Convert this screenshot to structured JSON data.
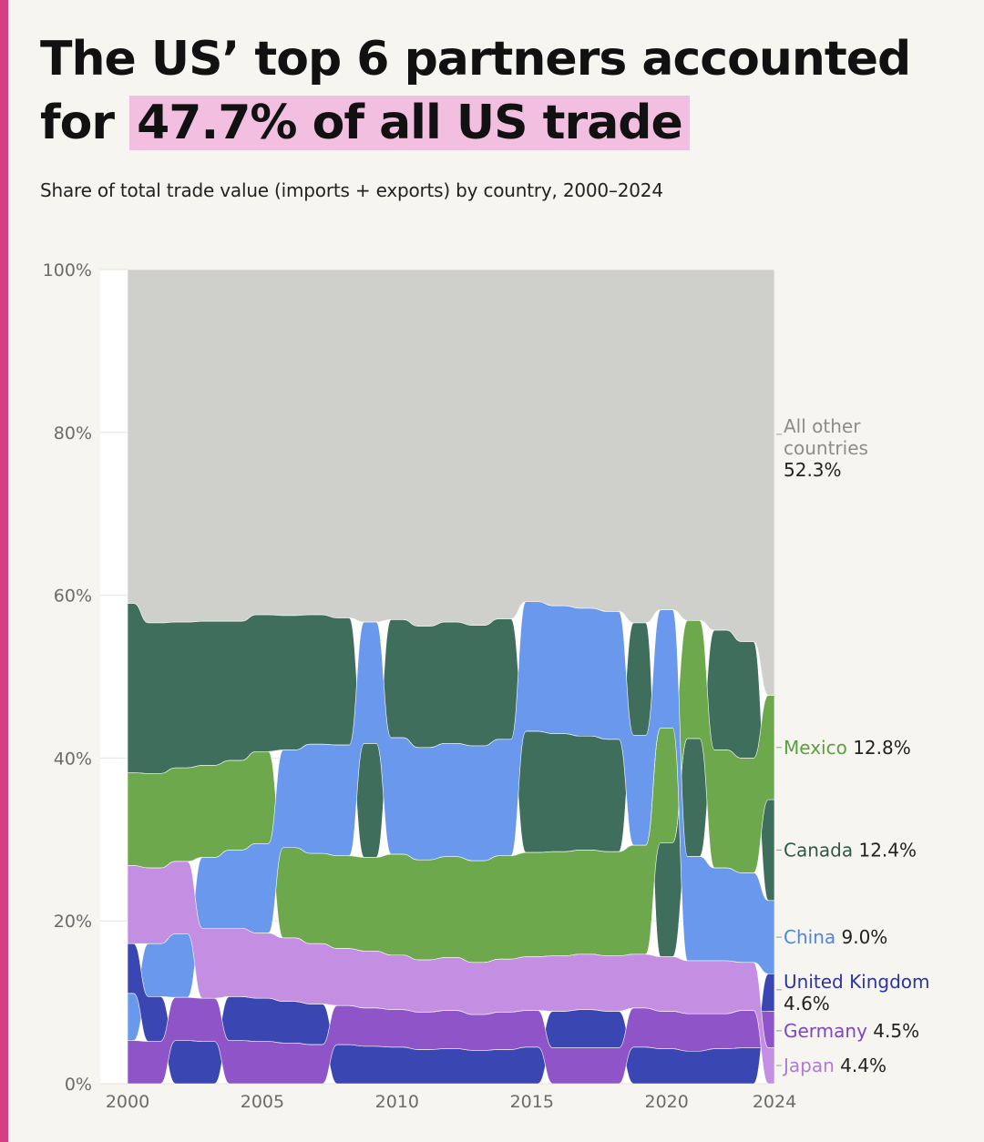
{
  "title": {
    "line1": "The US’ top 6 partners accounted",
    "line2_prefix": "for",
    "highlight": "47.7% of all US trade",
    "highlight_color": "#f2bfe0"
  },
  "subtitle": "Share of total trade value (imports + exports) by country, 2000–2024",
  "accent_color": "#d63c84",
  "chart_data": {
    "type": "area",
    "variant": "ranked stacked area (bump)",
    "x": [
      2000,
      2001,
      2002,
      2003,
      2004,
      2005,
      2006,
      2007,
      2008,
      2009,
      2010,
      2011,
      2012,
      2013,
      2014,
      2015,
      2016,
      2017,
      2018,
      2019,
      2020,
      2021,
      2022,
      2023,
      2024
    ],
    "x_ticks": [
      "2000",
      "2005",
      "2010",
      "2015",
      "2020",
      "2024"
    ],
    "y_ticks": [
      "0%",
      "20%",
      "40%",
      "60%",
      "80%",
      "100%"
    ],
    "ylim": [
      0,
      100
    ],
    "grid": true,
    "series": [
      {
        "name": "Canada",
        "color": "#3f6f5c",
        "label_color": "#2f5a48",
        "values": [
          20.8,
          18.5,
          17.9,
          17.7,
          17.1,
          16.8,
          16.5,
          15.9,
          15.6,
          14.0,
          14.5,
          14.9,
          14.9,
          14.8,
          14.8,
          14.9,
          14.5,
          14.0,
          13.8,
          13.8,
          14.0,
          14.5,
          14.7,
          14.3,
          12.4
        ],
        "end_value": "12.4%"
      },
      {
        "name": "Mexico",
        "color": "#6ea84c",
        "label_color": "#5a9f3f",
        "values": [
          11.4,
          11.6,
          11.5,
          11.3,
          11.0,
          11.3,
          11.1,
          11.1,
          11.4,
          11.5,
          12.4,
          12.3,
          12.4,
          12.5,
          12.7,
          12.8,
          12.8,
          12.8,
          12.8,
          13.4,
          14.1,
          14.5,
          14.5,
          14.1,
          12.8
        ],
        "end_value": "12.8%"
      },
      {
        "name": "China",
        "color": "#6a98ec",
        "label_color": "#4f86e5",
        "values": [
          5.8,
          6.5,
          7.8,
          8.7,
          9.6,
          11.0,
          12.0,
          13.4,
          13.6,
          14.9,
          14.3,
          13.8,
          13.9,
          14.1,
          14.3,
          15.9,
          15.7,
          15.7,
          15.7,
          13.5,
          14.5,
          12.8,
          11.4,
          11.0,
          9.0
        ],
        "end_value": "9.0%"
      },
      {
        "name": "United Kingdom",
        "color": "#3a46b2",
        "label_color": "#2d34a0",
        "values": [
          6.1,
          5.5,
          5.3,
          5.2,
          5.4,
          5.3,
          5.1,
          5.0,
          4.8,
          4.6,
          4.5,
          4.2,
          4.3,
          4.1,
          4.2,
          4.5,
          4.5,
          4.7,
          4.5,
          4.5,
          4.3,
          4.0,
          4.3,
          4.4,
          4.6
        ],
        "end_value": "4.6%"
      },
      {
        "name": "Germany",
        "color": "#8f55c8",
        "label_color": "#7e46c0",
        "values": [
          5.3,
          5.2,
          5.3,
          5.3,
          5.3,
          5.2,
          5.0,
          4.8,
          4.8,
          4.7,
          4.6,
          4.6,
          4.7,
          4.4,
          4.6,
          4.5,
          4.4,
          4.4,
          4.4,
          4.8,
          4.6,
          4.6,
          4.3,
          4.6,
          4.5
        ],
        "end_value": "4.5%"
      },
      {
        "name": "Japan",
        "color": "#c48fe2",
        "label_color": "#b07ad8",
        "values": [
          9.6,
          9.3,
          8.9,
          8.6,
          8.4,
          8.0,
          7.8,
          7.4,
          7.0,
          7.0,
          6.7,
          6.4,
          6.5,
          6.4,
          6.5,
          6.6,
          6.8,
          6.8,
          6.8,
          6.6,
          6.7,
          6.5,
          6.5,
          5.9,
          4.4
        ],
        "end_value": "4.4%"
      },
      {
        "name": "All other countries",
        "color": "#cfcfcc",
        "label_color": "#8c8c8c",
        "values": [
          41.0,
          43.4,
          43.3,
          43.2,
          43.2,
          42.4,
          42.5,
          42.4,
          42.8,
          43.3,
          43.0,
          43.8,
          43.3,
          43.7,
          42.9,
          40.8,
          41.3,
          41.6,
          42.0,
          43.4,
          41.8,
          43.1,
          44.3,
          45.7,
          52.3
        ],
        "end_value": "52.3%"
      }
    ]
  }
}
